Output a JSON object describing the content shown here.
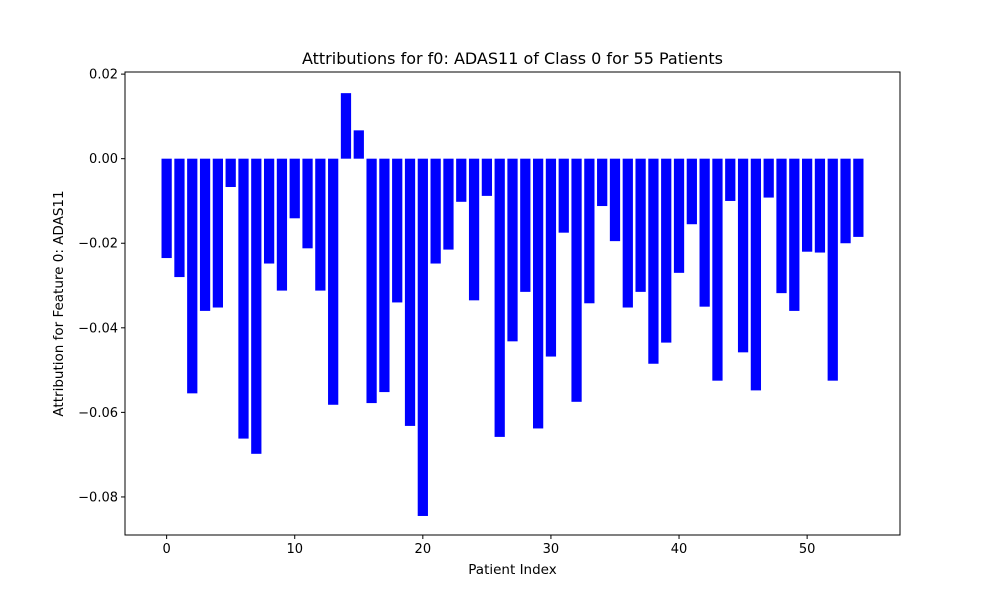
{
  "chart_data": {
    "type": "bar",
    "title": "Attributions for f0: ADAS11 of Class 0 for 55 Patients",
    "xlabel": "Patient Index",
    "ylabel": "Attribution for Feature 0: ADAS11",
    "bar_color": "#0000ff",
    "x": [
      0,
      1,
      2,
      3,
      4,
      5,
      6,
      7,
      8,
      9,
      10,
      11,
      12,
      13,
      14,
      15,
      16,
      17,
      18,
      19,
      20,
      21,
      22,
      23,
      24,
      25,
      26,
      27,
      28,
      29,
      30,
      31,
      32,
      33,
      34,
      35,
      36,
      37,
      38,
      39,
      40,
      41,
      42,
      43,
      44,
      45,
      46,
      47,
      48,
      49,
      50,
      51,
      52,
      53,
      54
    ],
    "values": [
      -0.0235,
      -0.028,
      -0.0555,
      -0.036,
      -0.0352,
      -0.0067,
      -0.0662,
      -0.0698,
      -0.0248,
      -0.0312,
      -0.0141,
      -0.0212,
      -0.0312,
      -0.0582,
      0.0155,
      0.0067,
      -0.0578,
      -0.0552,
      -0.034,
      -0.0632,
      -0.0845,
      -0.0248,
      -0.0215,
      -0.0102,
      -0.0335,
      -0.0088,
      -0.0658,
      -0.0432,
      -0.0315,
      -0.0638,
      -0.0468,
      -0.0175,
      -0.0575,
      -0.0342,
      -0.0112,
      -0.0195,
      -0.0352,
      -0.0315,
      -0.0485,
      -0.0435,
      -0.027,
      -0.0155,
      -0.035,
      -0.0525,
      -0.01,
      -0.0458,
      -0.0548,
      -0.0092,
      -0.0318,
      -0.036,
      -0.022,
      -0.0222,
      -0.0525,
      -0.02,
      -0.0185
    ],
    "xlim": [
      -3.25,
      57.25
    ],
    "ylim": [
      -0.089,
      0.0205
    ],
    "x_ticks": [
      0,
      10,
      20,
      30,
      40,
      50
    ],
    "x_tick_labels": [
      "0",
      "10",
      "20",
      "30",
      "40",
      "50"
    ],
    "y_ticks": [
      -0.08,
      -0.06,
      -0.04,
      -0.02,
      0.0,
      0.02
    ],
    "y_tick_labels": [
      "−0.08",
      "−0.06",
      "−0.04",
      "−0.02",
      "0.00",
      "0.02"
    ],
    "grid": false,
    "legend": "none"
  }
}
